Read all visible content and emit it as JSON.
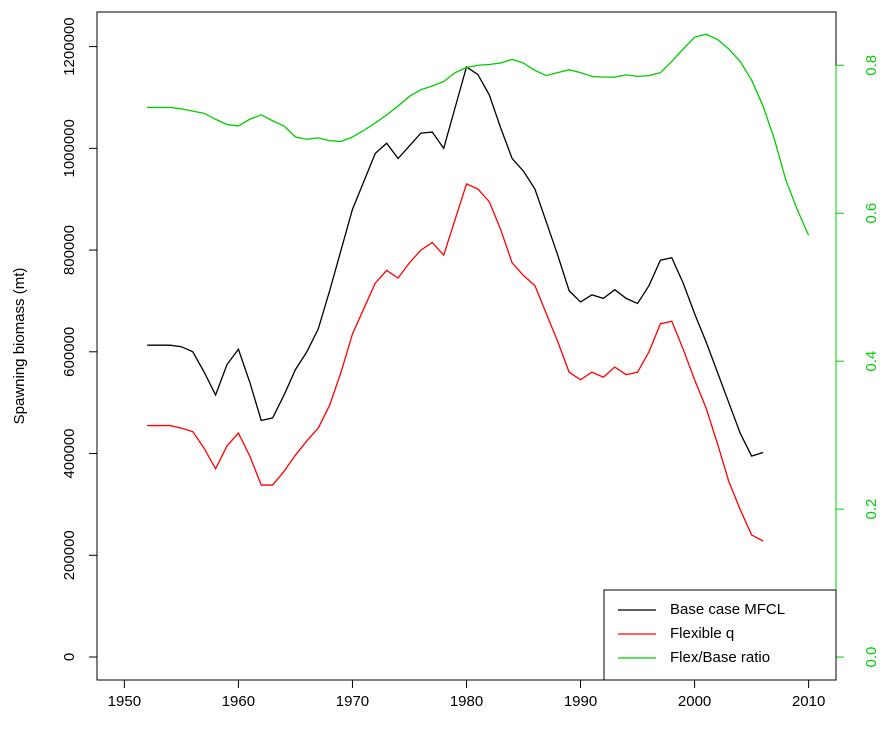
{
  "chart_data": {
    "type": "line",
    "y_label": "Spawning biomass (mt)",
    "x": [
      1952,
      1953,
      1954,
      1955,
      1956,
      1957,
      1958,
      1959,
      1960,
      1961,
      1962,
      1963,
      1964,
      1965,
      1966,
      1967,
      1968,
      1969,
      1970,
      1971,
      1972,
      1973,
      1974,
      1975,
      1976,
      1977,
      1978,
      1979,
      1980,
      1981,
      1982,
      1983,
      1984,
      1985,
      1986,
      1987,
      1988,
      1989,
      1990,
      1991,
      1992,
      1993,
      1994,
      1995,
      1996,
      1997,
      1998,
      1999,
      2000,
      2001,
      2002,
      2003,
      2004,
      2005,
      2006,
      2007,
      2008,
      2009,
      2010
    ],
    "series": [
      {
        "name": "Base case MFCL",
        "color": "#000000",
        "values": [
          613000,
          613000,
          613000,
          610000,
          600000,
          560000,
          515000,
          575000,
          605000,
          540000,
          465000,
          470000,
          515000,
          565000,
          600000,
          645000,
          720000,
          800000,
          880000,
          935000,
          990000,
          1010000,
          980000,
          1005000,
          1030000,
          1032000,
          1000000,
          1080000,
          1160000,
          1145000,
          1105000,
          1040000,
          980000,
          955000,
          920000,
          855000,
          790000,
          720000,
          698000,
          712000,
          705000,
          722000,
          705000,
          695000,
          730000,
          780000,
          785000,
          735000,
          675000,
          620000,
          560000,
          500000,
          440000,
          395000,
          402000,
          null,
          null,
          null,
          null
        ]
      },
      {
        "name": "Flexible q",
        "color": "#ff0000",
        "values": [
          455000,
          455000,
          455000,
          450000,
          443000,
          410000,
          370000,
          415000,
          440000,
          395000,
          338000,
          338000,
          365000,
          397000,
          425000,
          450000,
          495000,
          560000,
          635000,
          685000,
          735000,
          760000,
          745000,
          775000,
          800000,
          815000,
          790000,
          860000,
          930000,
          920000,
          895000,
          840000,
          775000,
          750000,
          730000,
          675000,
          620000,
          560000,
          545000,
          560000,
          550000,
          570000,
          555000,
          560000,
          600000,
          655000,
          660000,
          605000,
          545000,
          490000,
          420000,
          345000,
          290000,
          240000,
          228000,
          null,
          null,
          null,
          null
        ]
      },
      {
        "name": "Flex/Base ratio",
        "color": "#00cc00",
        "axis": "y2",
        "values": [
          0.743,
          0.743,
          0.743,
          0.741,
          0.738,
          0.735,
          0.727,
          0.72,
          0.718,
          0.727,
          0.733,
          0.725,
          0.718,
          0.703,
          0.7,
          0.702,
          0.698,
          0.697,
          0.703,
          0.712,
          0.722,
          0.733,
          0.745,
          0.758,
          0.767,
          0.772,
          0.778,
          0.79,
          0.797,
          0.8,
          0.801,
          0.803,
          0.808,
          0.803,
          0.793,
          0.786,
          0.79,
          0.794,
          0.79,
          0.785,
          0.784,
          0.784,
          0.787,
          0.785,
          0.786,
          0.79,
          0.805,
          0.822,
          0.838,
          0.842,
          0.835,
          0.822,
          0.805,
          0.78,
          0.745,
          0.7,
          0.645,
          0.605,
          0.57
        ]
      }
    ],
    "xlim": [
      1947.6,
      2012.4
    ],
    "xticks": [
      1950,
      1960,
      1970,
      1980,
      1990,
      2000,
      2010
    ],
    "ylim": [
      -45200,
      1268000
    ],
    "yticks": [
      0,
      200000,
      400000,
      600000,
      800000,
      1000000,
      1200000
    ],
    "y2lim": [
      -0.031,
      0.872
    ],
    "y2ticks": [
      {
        "value": 0,
        "label": "0.0"
      },
      0.2,
      0.4,
      0.6,
      0.8
    ],
    "y2color": "#00cc00",
    "legend": "bottom-right"
  }
}
